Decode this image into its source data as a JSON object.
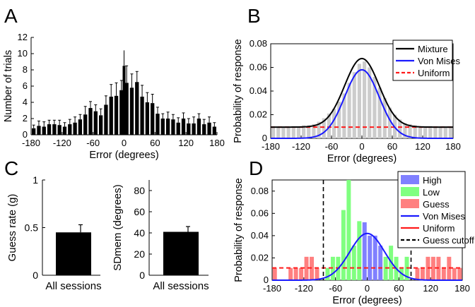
{
  "colors": {
    "bar": "#000000",
    "hist_gray": "#cccccc",
    "mixture": "#000000",
    "von_mises": "#1a1aff",
    "uniform": "#ff1a1a",
    "high": "#8080ff",
    "low": "#80ff80",
    "guess": "#ff8080",
    "cutoff": "#000000"
  },
  "chart_data": [
    {
      "panel": "A",
      "type": "bar",
      "xlabel": "Error (degrees)",
      "ylabel": "Number of trials",
      "xlim": [
        -180,
        180
      ],
      "ylim": [
        0,
        12
      ],
      "xticks": [
        -180,
        -120,
        -60,
        0,
        60,
        120,
        180
      ],
      "yticks": [
        0,
        2,
        4,
        6,
        8,
        10,
        12
      ],
      "bin_width": 10,
      "x": [
        -175,
        -165,
        -155,
        -145,
        -135,
        -125,
        -115,
        -105,
        -95,
        -85,
        -75,
        -65,
        -55,
        -45,
        -35,
        -25,
        -15,
        -5,
        5,
        15,
        25,
        35,
        45,
        55,
        65,
        75,
        85,
        95,
        105,
        115,
        125,
        135,
        145,
        155,
        165,
        175
      ],
      "values": [
        0.8,
        1.1,
        1.0,
        1.3,
        1.3,
        1.2,
        1.0,
        1.3,
        1.5,
        1.9,
        2.5,
        3.3,
        2.9,
        2.4,
        3.7,
        4.7,
        4.8,
        5.5,
        6.4,
        5.8,
        6.5,
        4.7,
        4.0,
        3.9,
        2.6,
        2.0,
        2.0,
        1.9,
        1.5,
        2.0,
        1.4,
        1.4,
        2.0,
        1.3,
        1.5,
        1.0
      ],
      "errors": [
        0.4,
        0.6,
        0.6,
        0.5,
        0.5,
        0.6,
        0.5,
        0.6,
        0.7,
        0.6,
        1.0,
        0.8,
        0.8,
        0.8,
        1.1,
        1.5,
        1.6,
        1.2,
        2.1,
        1.7,
        1.3,
        1.4,
        1.2,
        1.1,
        0.8,
        0.6,
        0.8,
        0.6,
        0.6,
        0.7,
        0.6,
        0.8,
        0.6,
        0.6,
        0.7,
        0.5
      ],
      "peak_bar": {
        "x": 0,
        "value": 8.5,
        "error": 1.9
      }
    },
    {
      "panel": "B",
      "type": "line",
      "xlabel": "Error (degrees)",
      "ylabel": "Probability of response",
      "xlim": [
        -180,
        180
      ],
      "ylim": [
        0,
        0.08
      ],
      "xticks": [
        -180,
        -120,
        -60,
        0,
        60,
        120,
        180
      ],
      "yticks": [
        0,
        0.02,
        0.04,
        0.06,
        0.08
      ],
      "legend": [
        "Mixture",
        "Von Mises",
        "Uniform"
      ],
      "legend_position": "top-right",
      "hist_x": [
        -175,
        -165,
        -155,
        -145,
        -135,
        -125,
        -115,
        -105,
        -95,
        -85,
        -75,
        -65,
        -55,
        -45,
        -35,
        -25,
        -15,
        -5,
        5,
        15,
        25,
        35,
        45,
        55,
        65,
        75,
        85,
        95,
        105,
        115,
        125,
        135,
        145,
        155,
        165,
        175
      ],
      "hist_values": [
        0.009,
        0.01,
        0.009,
        0.01,
        0.01,
        0.01,
        0.011,
        0.011,
        0.012,
        0.014,
        0.017,
        0.021,
        0.025,
        0.031,
        0.038,
        0.047,
        0.056,
        0.063,
        0.065,
        0.06,
        0.052,
        0.043,
        0.034,
        0.026,
        0.02,
        0.016,
        0.013,
        0.012,
        0.011,
        0.01,
        0.01,
        0.01,
        0.01,
        0.009,
        0.01,
        0.009
      ],
      "von_mises": {
        "mu": 0,
        "sigma_deg": 34,
        "peak": 0.058
      },
      "uniform_level": 0.0095
    },
    {
      "panel": "C1",
      "type": "bar",
      "categories": [
        "All sessions"
      ],
      "values": [
        0.45
      ],
      "errors": [
        0.08
      ],
      "ylabel": "Guess rate (g)",
      "ylim": [
        0,
        1
      ],
      "yticks": [
        0,
        0.5,
        1
      ]
    },
    {
      "panel": "C2",
      "type": "bar",
      "categories": [
        "All sessions"
      ],
      "values": [
        41
      ],
      "errors": [
        5
      ],
      "ylabel": "SDmem (degrees)",
      "ylim": [
        0,
        90
      ],
      "yticks": [
        0,
        20,
        40,
        60,
        80
      ]
    },
    {
      "panel": "D",
      "type": "bar",
      "xlabel": "Error (degrees)",
      "ylabel": "Probability of response",
      "xlim": [
        -180,
        180
      ],
      "ylim": [
        0,
        0.09
      ],
      "xticks": [
        -180,
        -120,
        -60,
        0,
        60,
        120,
        180
      ],
      "yticks": [
        0,
        0.02,
        0.04,
        0.06,
        0.08
      ],
      "legend": [
        "High",
        "Low",
        "Guess",
        "Von Mises",
        "Uniform",
        "Guess cutoff"
      ],
      "legend_position": "top-right",
      "bin_width": 10,
      "series": [
        {
          "name": "Guess",
          "x": [
            -175,
            -165,
            -155,
            -145,
            -135,
            -125,
            -115,
            -105,
            -95,
            85,
            95,
            105,
            115,
            125,
            135,
            145,
            155,
            165,
            175
          ],
          "values": [
            0.011,
            0,
            0,
            0.011,
            0.011,
            0.011,
            0.021,
            0.021,
            0.011,
            0,
            0.011,
            0.011,
            0.021,
            0.021,
            0.021,
            0.011,
            0.021,
            0.011,
            0.011
          ]
        },
        {
          "name": "Low",
          "x": [
            -75,
            -65,
            -55,
            -45,
            -35,
            -25,
            -15,
            35,
            45,
            55,
            65,
            75
          ],
          "values": [
            0.011,
            0.021,
            0.021,
            0.063,
            0.09,
            0.031,
            0.053,
            0.021,
            0.031,
            0.021,
            0.011,
            0.021
          ]
        },
        {
          "name": "High",
          "x": [
            -5,
            5,
            15,
            25
          ],
          "values": [
            0.052,
            0.04,
            0.04,
            0.031
          ]
        }
      ],
      "von_mises": {
        "mu": 0,
        "sigma_deg": 33,
        "peak": 0.042
      },
      "uniform_level": 0.011,
      "guess_cutoff": [
        -83,
        83
      ]
    }
  ],
  "panel_labels": {
    "a": "A",
    "b": "B",
    "c": "C",
    "d": "D"
  }
}
